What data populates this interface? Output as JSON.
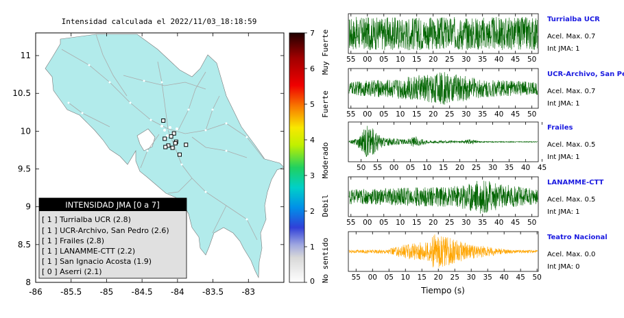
{
  "map": {
    "title": "Intensidad calculada el 2022/11/03_18:18:59",
    "lon_ticks": [
      "-86",
      "-85.5",
      "-85",
      "-84.5",
      "-84",
      "-83.5",
      "-83"
    ],
    "lat_ticks": [
      "11",
      "10.5",
      "10",
      "9.5",
      "9",
      "8.5",
      "8"
    ],
    "lon_range": [
      -86,
      -82.5
    ],
    "lat_range": [
      8,
      11.3
    ],
    "land_color": "#b2ebeb",
    "stations": [
      {
        "lon": -84.2,
        "lat": 10.14
      },
      {
        "lon": -84.05,
        "lat": 9.97
      },
      {
        "lon": -84.09,
        "lat": 9.93
      },
      {
        "lon": -84.18,
        "lat": 9.9
      },
      {
        "lon": -84.02,
        "lat": 9.86
      },
      {
        "lon": -84.13,
        "lat": 9.81
      },
      {
        "lon": -83.88,
        "lat": 9.82
      },
      {
        "lon": -84.03,
        "lat": 9.84
      },
      {
        "lon": -84.17,
        "lat": 9.79
      },
      {
        "lon": -83.97,
        "lat": 9.69
      },
      {
        "lon": -84.07,
        "lat": 9.78
      }
    ]
  },
  "legend": {
    "title": "INTENSIDAD JMA [0 a 7]",
    "items": [
      "[ 1 ]  Turrialba UCR (2.8)",
      "[ 1 ]  UCR-Archivo, San Pedro (2.6)",
      "[ 1 ]  Frailes (2.8)",
      "[ 1 ]  LANAMME-CTT (2.2)",
      "[ 1 ]  San Ignacio Acosta (1.9)",
      "[ 0 ]  Aserri (2.1)"
    ]
  },
  "colorbar": {
    "ticks": [
      "7",
      "6",
      "5",
      "4",
      "3",
      "2",
      "1",
      "0"
    ],
    "labels": [
      "Muy Fuerte",
      "Fuerte",
      "Moderado",
      "Debil",
      "No sentido"
    ]
  },
  "panels": [
    {
      "name": "Turrialba UCR",
      "acel": "Acel. Max. 0.7",
      "jma": "Int JMA: 1",
      "color": "#006400",
      "ticks": [
        "55",
        "00",
        "05",
        "10",
        "15",
        "20",
        "25",
        "30",
        "35",
        "40",
        "45",
        "50"
      ],
      "first": 0.0137,
      "spacing": 0.0866,
      "env": [
        [
          0,
          0.9
        ],
        [
          1,
          0.9
        ]
      ]
    },
    {
      "name": "UCR-Archivo, San Pedro",
      "acel": "Acel. Max. 0.7",
      "jma": "Int JMA: 1",
      "color": "#006400",
      "ticks": [
        "55",
        "00",
        "05",
        "10",
        "15",
        "20",
        "25",
        "30",
        "35",
        "40",
        "45",
        "50"
      ],
      "first": 0.0137,
      "spacing": 0.0866,
      "env": [
        [
          0,
          0.35
        ],
        [
          0.25,
          0.55
        ],
        [
          0.5,
          0.9
        ],
        [
          0.7,
          0.5
        ],
        [
          1,
          0.35
        ]
      ]
    },
    {
      "name": "Frailes",
      "acel": "Acel. Max. 0.5",
      "jma": "Int JMA: 1",
      "color": "#006400",
      "ticks": [
        "50",
        "55",
        "00",
        "05",
        "10",
        "15",
        "20",
        "25",
        "30",
        "35",
        "40",
        "45"
      ],
      "first": 0.0673,
      "spacing": 0.0866,
      "env": [
        [
          0,
          0.05
        ],
        [
          0.04,
          0.2
        ],
        [
          0.1,
          0.95
        ],
        [
          0.18,
          0.25
        ],
        [
          0.3,
          0.12
        ],
        [
          0.35,
          0.3
        ],
        [
          0.42,
          0.08
        ],
        [
          0.6,
          0.06
        ],
        [
          0.64,
          0.15
        ],
        [
          0.7,
          0.03
        ],
        [
          1,
          0.02
        ]
      ]
    },
    {
      "name": "LANAMME-CTT",
      "acel": "Acel. Max. 0.5",
      "jma": "Int JMA: 1",
      "color": "#006400",
      "ticks": [
        "55",
        "00",
        "05",
        "10",
        "15",
        "20",
        "25",
        "30",
        "35",
        "40",
        "45",
        "50"
      ],
      "first": 0.0137,
      "spacing": 0.0866,
      "env": [
        [
          0,
          0.4
        ],
        [
          0.3,
          0.5
        ],
        [
          0.55,
          0.55
        ],
        [
          0.7,
          0.95
        ],
        [
          0.8,
          0.7
        ],
        [
          1,
          0.4
        ]
      ]
    },
    {
      "name": "Teatro Nacional",
      "acel": "Acel. Max. 0.0",
      "jma": "Int JMA: 0",
      "color": "#ffa500",
      "ticks": [
        "55",
        "00",
        "05",
        "10",
        "15",
        "20",
        "25",
        "30",
        "35",
        "40",
        "45",
        "50"
      ],
      "first": 0.0407,
      "spacing": 0.0866,
      "env": [
        [
          0,
          0.08
        ],
        [
          0.2,
          0.12
        ],
        [
          0.3,
          0.4
        ],
        [
          0.42,
          0.55
        ],
        [
          0.45,
          0.95
        ],
        [
          0.55,
          0.7
        ],
        [
          0.65,
          0.4
        ],
        [
          0.75,
          0.25
        ],
        [
          0.85,
          0.1
        ],
        [
          1,
          0.08
        ]
      ]
    }
  ],
  "xlabel": "Tiempo (s)"
}
